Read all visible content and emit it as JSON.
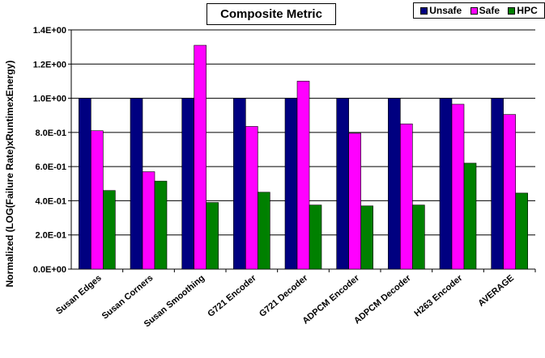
{
  "chart_data": {
    "type": "bar",
    "title": "Composite Metric",
    "ylabel": "Normalized (LOG(Failure Rate)xRuntimexEnergy)",
    "xlabel": "",
    "categories": [
      "Susan Edges",
      "Susan Corners",
      "Susan Smoothing",
      "G721 Encoder",
      "G721 Decoder",
      "ADPCM Encoder",
      "ADPCM Decoder",
      "H263 Encoder",
      "AVERAGE"
    ],
    "series": [
      {
        "name": "Unsafe",
        "color": "#000080",
        "values": [
          1.0,
          1.0,
          1.0,
          1.0,
          1.0,
          1.0,
          1.0,
          1.0,
          1.0
        ]
      },
      {
        "name": "Safe",
        "color": "#ff00ff",
        "values": [
          0.81,
          0.57,
          1.31,
          0.835,
          1.1,
          0.795,
          0.85,
          0.965,
          0.905
        ]
      },
      {
        "name": "HPC",
        "color": "#008000",
        "values": [
          0.46,
          0.515,
          0.39,
          0.45,
          0.375,
          0.37,
          0.375,
          0.62,
          0.445
        ]
      }
    ],
    "ylim": [
      0,
      1.4
    ],
    "yticks": [
      0,
      0.2,
      0.4,
      0.6,
      0.8,
      1.0,
      1.2,
      1.4
    ],
    "ytick_labels": [
      "0.0E+00",
      "2.0E-01",
      "4.0E-01",
      "6.0E-01",
      "8.0E-01",
      "1.0E+00",
      "1.2E+00",
      "1.4E+00"
    ],
    "grid": "horizontal",
    "legend_position": "top-right"
  }
}
